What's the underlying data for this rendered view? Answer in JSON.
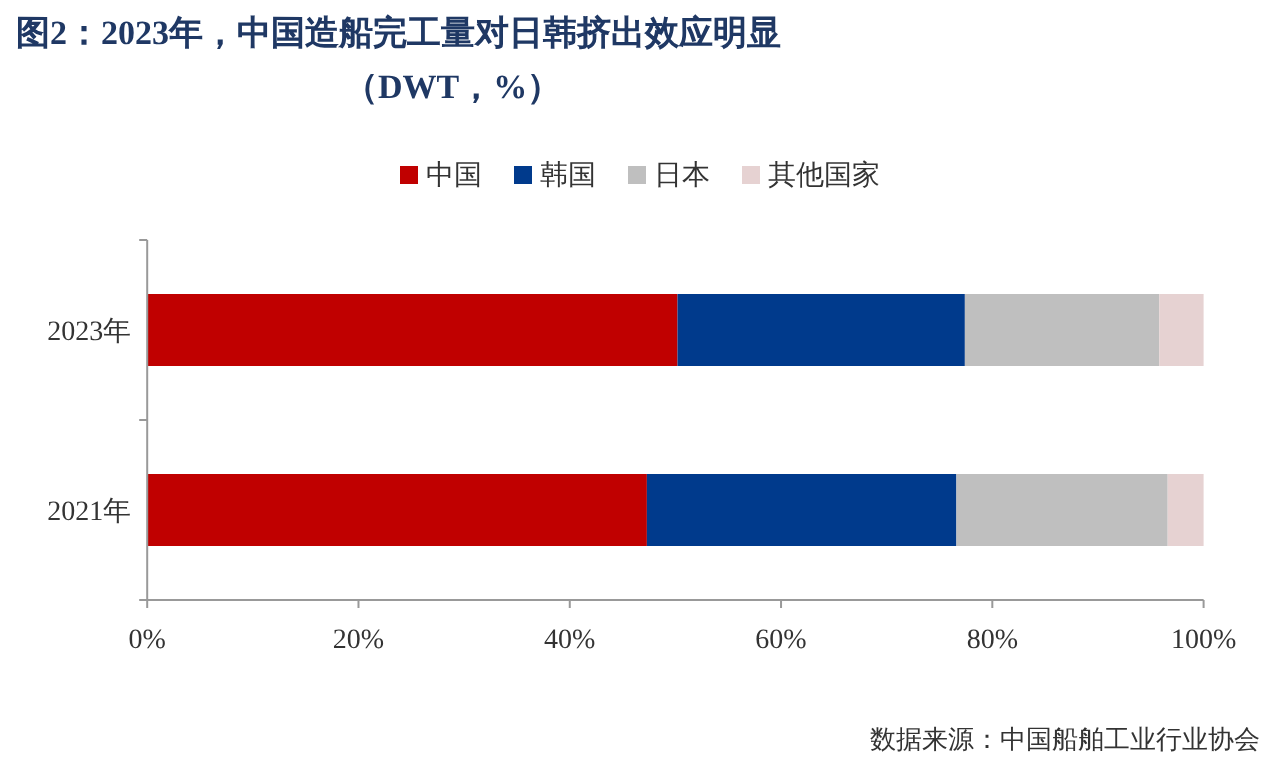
{
  "chart_data": {
    "type": "bar",
    "orientation": "horizontal",
    "stacked": true,
    "title": "图2：2023年，中国造船完工量对日韩挤出效应明显",
    "subtitle": "（DWT，%）",
    "categories": [
      "2023年",
      "2021年"
    ],
    "series": [
      {
        "name": "中国",
        "color": "#c00000",
        "values": [
          50.2,
          47.3
        ]
      },
      {
        "name": "韩国",
        "color": "#003a8c",
        "values": [
          27.2,
          29.3
        ]
      },
      {
        "name": "日本",
        "color": "#bfbfbf",
        "values": [
          18.4,
          20.0
        ]
      },
      {
        "name": "其他国家",
        "color": "#e6d2d2",
        "values": [
          4.2,
          3.4
        ]
      }
    ],
    "xlim": [
      0,
      100
    ],
    "xticks": [
      {
        "value": 0,
        "label": "0%"
      },
      {
        "value": 20,
        "label": "20%"
      },
      {
        "value": 40,
        "label": "40%"
      },
      {
        "value": 60,
        "label": "60%"
      },
      {
        "value": 80,
        "label": "80%"
      },
      {
        "value": 100,
        "label": "100%"
      }
    ],
    "legend": "top",
    "grid": false,
    "annotations": [
      "数据来源：中国船舶工业行业协会"
    ]
  }
}
